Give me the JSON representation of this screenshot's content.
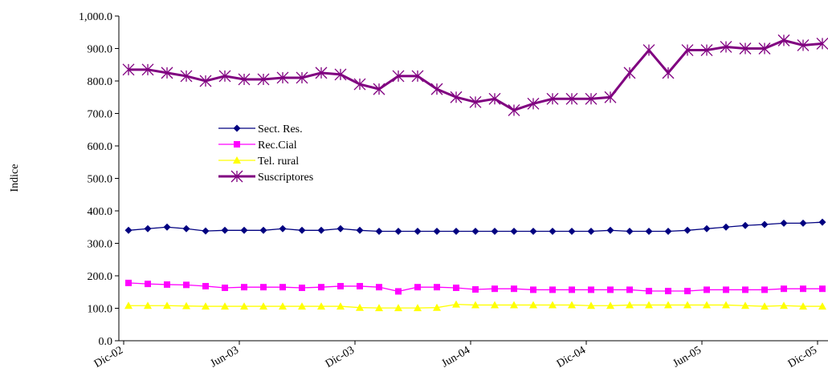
{
  "chart_data": {
    "type": "line",
    "y_label": "Indice",
    "categories": [
      "Dic-02",
      null,
      null,
      null,
      null,
      null,
      "Jun-03",
      null,
      null,
      null,
      null,
      null,
      "Dic-03",
      null,
      null,
      null,
      null,
      null,
      "Jun-04",
      null,
      null,
      null,
      null,
      null,
      "Dic-04",
      null,
      null,
      null,
      null,
      null,
      "Jun-05",
      null,
      null,
      null,
      null,
      null,
      "Dic-05"
    ],
    "ylim": [
      0,
      1000
    ],
    "yticks": [
      {
        "value": 0,
        "label": "0.0"
      },
      {
        "value": 100,
        "label": "100.0"
      },
      {
        "value": 200,
        "label": "200.0"
      },
      {
        "value": 300,
        "label": "300.0"
      },
      {
        "value": 400,
        "label": "400.0"
      },
      {
        "value": 500,
        "label": "500.0"
      },
      {
        "value": 600,
        "label": "600.0"
      },
      {
        "value": 700,
        "label": "700.0"
      },
      {
        "value": 800,
        "label": "800.0"
      },
      {
        "value": 900,
        "label": "900.0"
      },
      {
        "value": 1000,
        "label": "1,000.0"
      }
    ],
    "series": [
      {
        "name": "Sect. Res.",
        "color": "#000080",
        "marker": "diamond",
        "values": [
          340,
          345,
          350,
          345,
          338,
          340,
          340,
          340,
          345,
          340,
          340,
          345,
          340,
          337,
          337,
          337,
          337,
          337,
          337,
          337,
          337,
          337,
          337,
          337,
          337,
          340,
          337,
          337,
          337,
          340,
          345,
          350,
          355,
          358,
          362,
          362,
          365
        ]
      },
      {
        "name": "Rec.Cial",
        "color": "#ff00ff",
        "marker": "square",
        "values": [
          178,
          175,
          173,
          172,
          168,
          163,
          165,
          165,
          165,
          163,
          165,
          168,
          168,
          165,
          152,
          165,
          165,
          163,
          158,
          160,
          160,
          157,
          157,
          157,
          157,
          157,
          157,
          153,
          153,
          153,
          157,
          157,
          157,
          157,
          160,
          160,
          160
        ]
      },
      {
        "name": "Tel. rural",
        "color": "#ffff00",
        "marker": "triangle",
        "values": [
          108,
          108,
          108,
          107,
          106,
          106,
          106,
          106,
          106,
          106,
          106,
          106,
          102,
          101,
          101,
          101,
          102,
          112,
          110,
          110,
          110,
          110,
          110,
          110,
          108,
          108,
          110,
          110,
          110,
          110,
          110,
          110,
          108,
          106,
          108,
          106,
          106
        ]
      },
      {
        "name": "Suscriptores",
        "color": "#800080",
        "marker": "asterisk",
        "values": [
          835,
          835,
          825,
          815,
          800,
          815,
          805,
          805,
          810,
          810,
          825,
          820,
          790,
          775,
          815,
          815,
          775,
          750,
          735,
          745,
          710,
          730,
          745,
          745,
          745,
          750,
          825,
          895,
          825,
          895,
          895,
          905,
          900,
          900,
          925,
          910,
          915
        ]
      }
    ]
  }
}
